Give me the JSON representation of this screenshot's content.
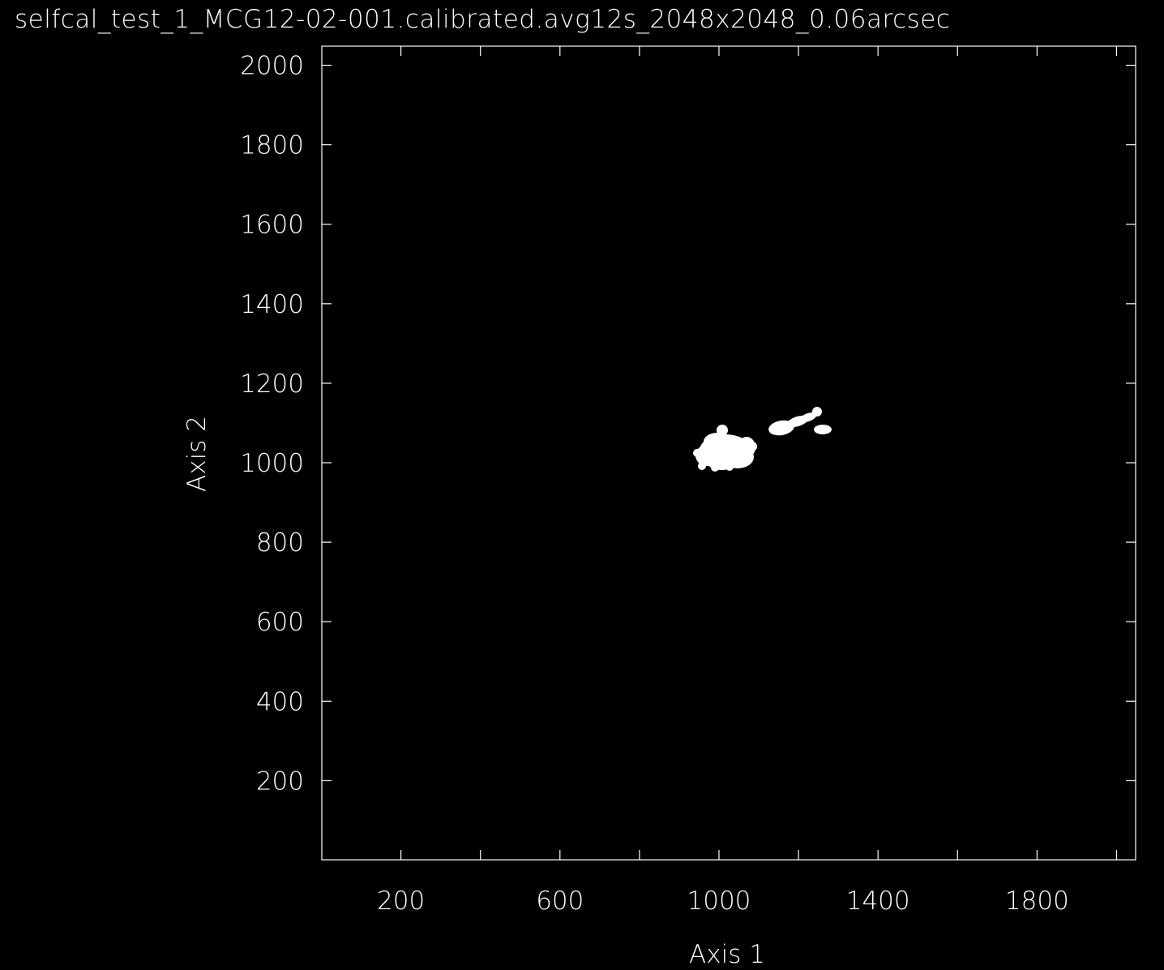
{
  "title": "selfcal_test_1_MCG12-02-001.calibrated.avg12s_2048x2048_0.06arcsec",
  "image": {
    "x_axis_label": "Axis 1",
    "y_axis_label": "Axis 2",
    "x_range": [
      1,
      2048
    ],
    "y_range": [
      1,
      2048
    ],
    "x_tick_labels": [
      "200",
      "600",
      "1000",
      "1400",
      "1800"
    ],
    "y_tick_labels": [
      "2000",
      "1800",
      "1600",
      "1400",
      "1200",
      "1000",
      "800",
      "600",
      "400",
      "200"
    ],
    "background_color": "#000000",
    "foreground_color": "#ffffff"
  }
}
